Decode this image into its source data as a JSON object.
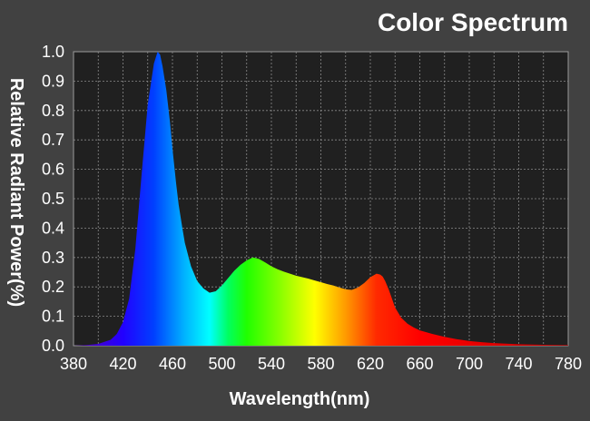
{
  "chart_data": {
    "type": "area",
    "title": "Color Spectrum",
    "xlabel": "Wavelength(nm)",
    "ylabel": "Relative Radiant Power(%)",
    "xlim": [
      380,
      780
    ],
    "ylim": [
      0,
      1.0
    ],
    "x_ticks": [
      380,
      420,
      460,
      500,
      540,
      580,
      620,
      660,
      700,
      740,
      780
    ],
    "x_tick_labels": [
      "380",
      "420",
      "460",
      "500",
      "540",
      "580",
      "620",
      "660",
      "700",
      "740",
      "780"
    ],
    "y_ticks": [
      0,
      0.1,
      0.2,
      0.3,
      0.4,
      0.5,
      0.6,
      0.7,
      0.8,
      0.9,
      1.0
    ],
    "y_tick_labels": [
      "0.0",
      "0.1",
      "0.2",
      "0.3",
      "0.4",
      "0.5",
      "0.6",
      "0.7",
      "0.8",
      "0.9",
      "1.0"
    ],
    "grid": true,
    "x_minor_ticks_per_major": 2,
    "series": [
      {
        "x": [
          380,
          390,
          400,
          410,
          415,
          420,
          425,
          430,
          435,
          440,
          445,
          448,
          450,
          452,
          455,
          458,
          460,
          463,
          465,
          468,
          470,
          475,
          480,
          485,
          490,
          495,
          500,
          505,
          510,
          515,
          520,
          525,
          530,
          535,
          540,
          545,
          550,
          555,
          560,
          565,
          570,
          575,
          580,
          585,
          590,
          595,
          600,
          605,
          610,
          615,
          620,
          625,
          628,
          630,
          632,
          635,
          640,
          645,
          650,
          655,
          660,
          670,
          680,
          690,
          700,
          710,
          720,
          740,
          760,
          780
        ],
        "values": [
          0.0,
          0.002,
          0.006,
          0.02,
          0.04,
          0.08,
          0.16,
          0.33,
          0.58,
          0.82,
          0.96,
          1.0,
          0.99,
          0.95,
          0.87,
          0.76,
          0.67,
          0.55,
          0.48,
          0.4,
          0.35,
          0.27,
          0.22,
          0.195,
          0.18,
          0.185,
          0.205,
          0.23,
          0.255,
          0.275,
          0.29,
          0.3,
          0.295,
          0.283,
          0.27,
          0.26,
          0.252,
          0.245,
          0.238,
          0.233,
          0.228,
          0.222,
          0.216,
          0.21,
          0.205,
          0.198,
          0.192,
          0.19,
          0.198,
          0.213,
          0.233,
          0.245,
          0.242,
          0.235,
          0.22,
          0.19,
          0.13,
          0.095,
          0.075,
          0.062,
          0.052,
          0.04,
          0.03,
          0.022,
          0.016,
          0.012,
          0.009,
          0.005,
          0.003,
          0.002
        ]
      }
    ],
    "color_stops": [
      {
        "nm": 380,
        "color": "#5a00b0"
      },
      {
        "nm": 420,
        "color": "#2200ff"
      },
      {
        "nm": 445,
        "color": "#0040ff"
      },
      {
        "nm": 470,
        "color": "#00b4ff"
      },
      {
        "nm": 490,
        "color": "#00ffff"
      },
      {
        "nm": 505,
        "color": "#00ff60"
      },
      {
        "nm": 520,
        "color": "#20ff00"
      },
      {
        "nm": 545,
        "color": "#80ff00"
      },
      {
        "nm": 575,
        "color": "#ffff00"
      },
      {
        "nm": 600,
        "color": "#ff9a00"
      },
      {
        "nm": 625,
        "color": "#ff2a00"
      },
      {
        "nm": 660,
        "color": "#ff0000"
      },
      {
        "nm": 780,
        "color": "#c00000"
      }
    ]
  }
}
